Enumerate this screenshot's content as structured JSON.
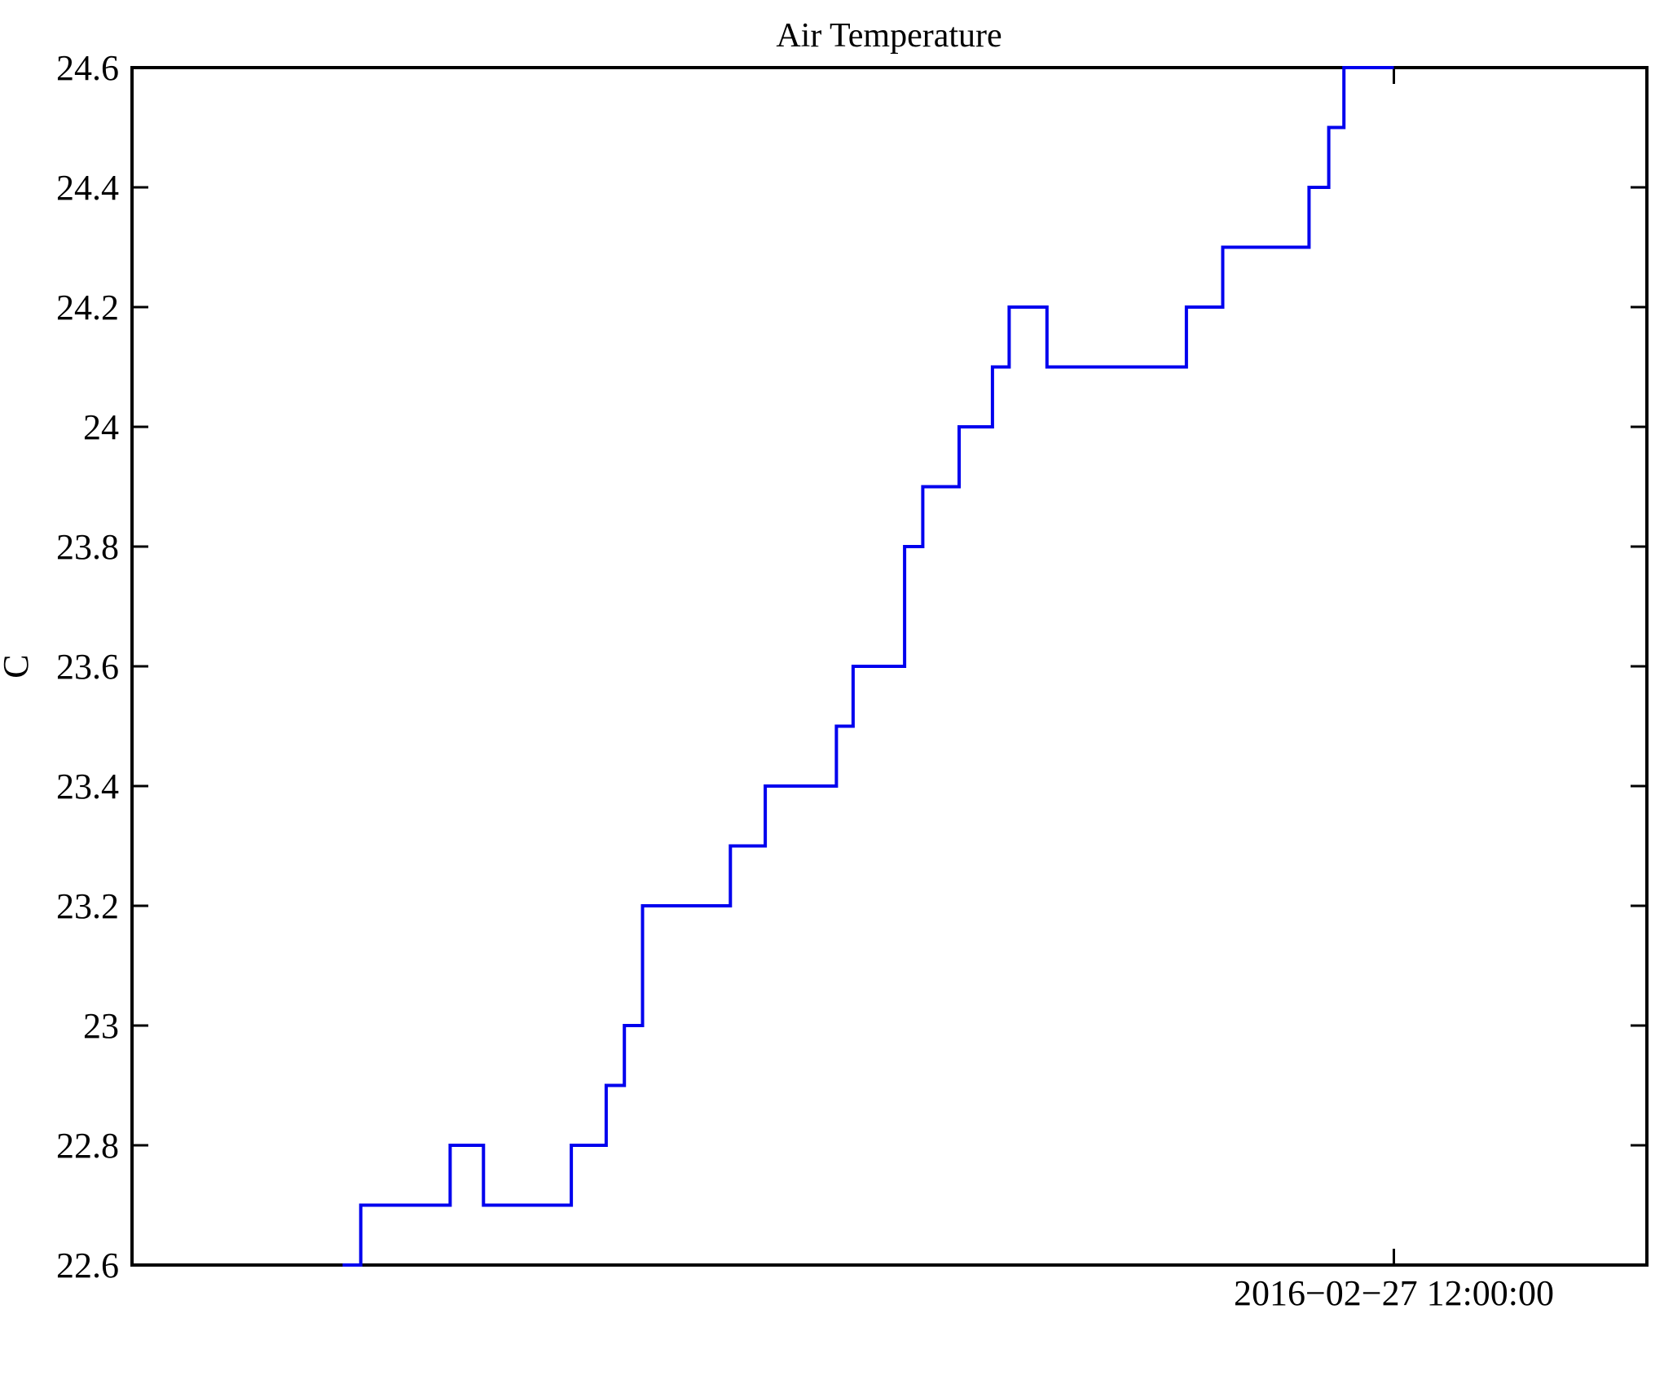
{
  "figure": {
    "background": "#ffffff"
  },
  "chart_data": {
    "type": "line",
    "subtype": "step-post",
    "title": "Air Temperature",
    "xlabel": "",
    "ylabel": "C",
    "ylim": [
      22.6,
      24.6
    ],
    "ytick_labels": [
      "22.6",
      "22.8",
      "23",
      "23.2",
      "23.4",
      "23.6",
      "23.8",
      "24",
      "24.2",
      "24.4",
      "24.6"
    ],
    "grid": false,
    "legend": false,
    "line_color": "#0000ee",
    "axis_color": "#000000",
    "x_units": "fraction of x-axis width (time axis, only one labeled tick visible)",
    "xticks": [
      {
        "pos": 0.833,
        "label": "2016−02−27 12:00:00"
      }
    ],
    "series_name": "Air Temperature (C)",
    "steps": [
      {
        "x": 0.139,
        "temp_c": 22.6
      },
      {
        "x": 0.151,
        "temp_c": 22.7
      },
      {
        "x": 0.21,
        "temp_c": 22.8
      },
      {
        "x": 0.232,
        "temp_c": 22.7
      },
      {
        "x": 0.29,
        "temp_c": 22.8
      },
      {
        "x": 0.313,
        "temp_c": 22.9
      },
      {
        "x": 0.325,
        "temp_c": 23.0
      },
      {
        "x": 0.337,
        "temp_c": 23.2
      },
      {
        "x": 0.395,
        "temp_c": 23.3
      },
      {
        "x": 0.418,
        "temp_c": 23.4
      },
      {
        "x": 0.465,
        "temp_c": 23.5
      },
      {
        "x": 0.476,
        "temp_c": 23.6
      },
      {
        "x": 0.51,
        "temp_c": 23.8
      },
      {
        "x": 0.522,
        "temp_c": 23.9
      },
      {
        "x": 0.546,
        "temp_c": 24.0
      },
      {
        "x": 0.568,
        "temp_c": 24.1
      },
      {
        "x": 0.579,
        "temp_c": 24.2
      },
      {
        "x": 0.604,
        "temp_c": 24.1
      },
      {
        "x": 0.696,
        "temp_c": 24.2
      },
      {
        "x": 0.72,
        "temp_c": 24.3
      },
      {
        "x": 0.777,
        "temp_c": 24.4
      },
      {
        "x": 0.79,
        "temp_c": 24.5
      },
      {
        "x": 0.8,
        "temp_c": 24.6
      }
    ],
    "x_end": 0.833
  }
}
